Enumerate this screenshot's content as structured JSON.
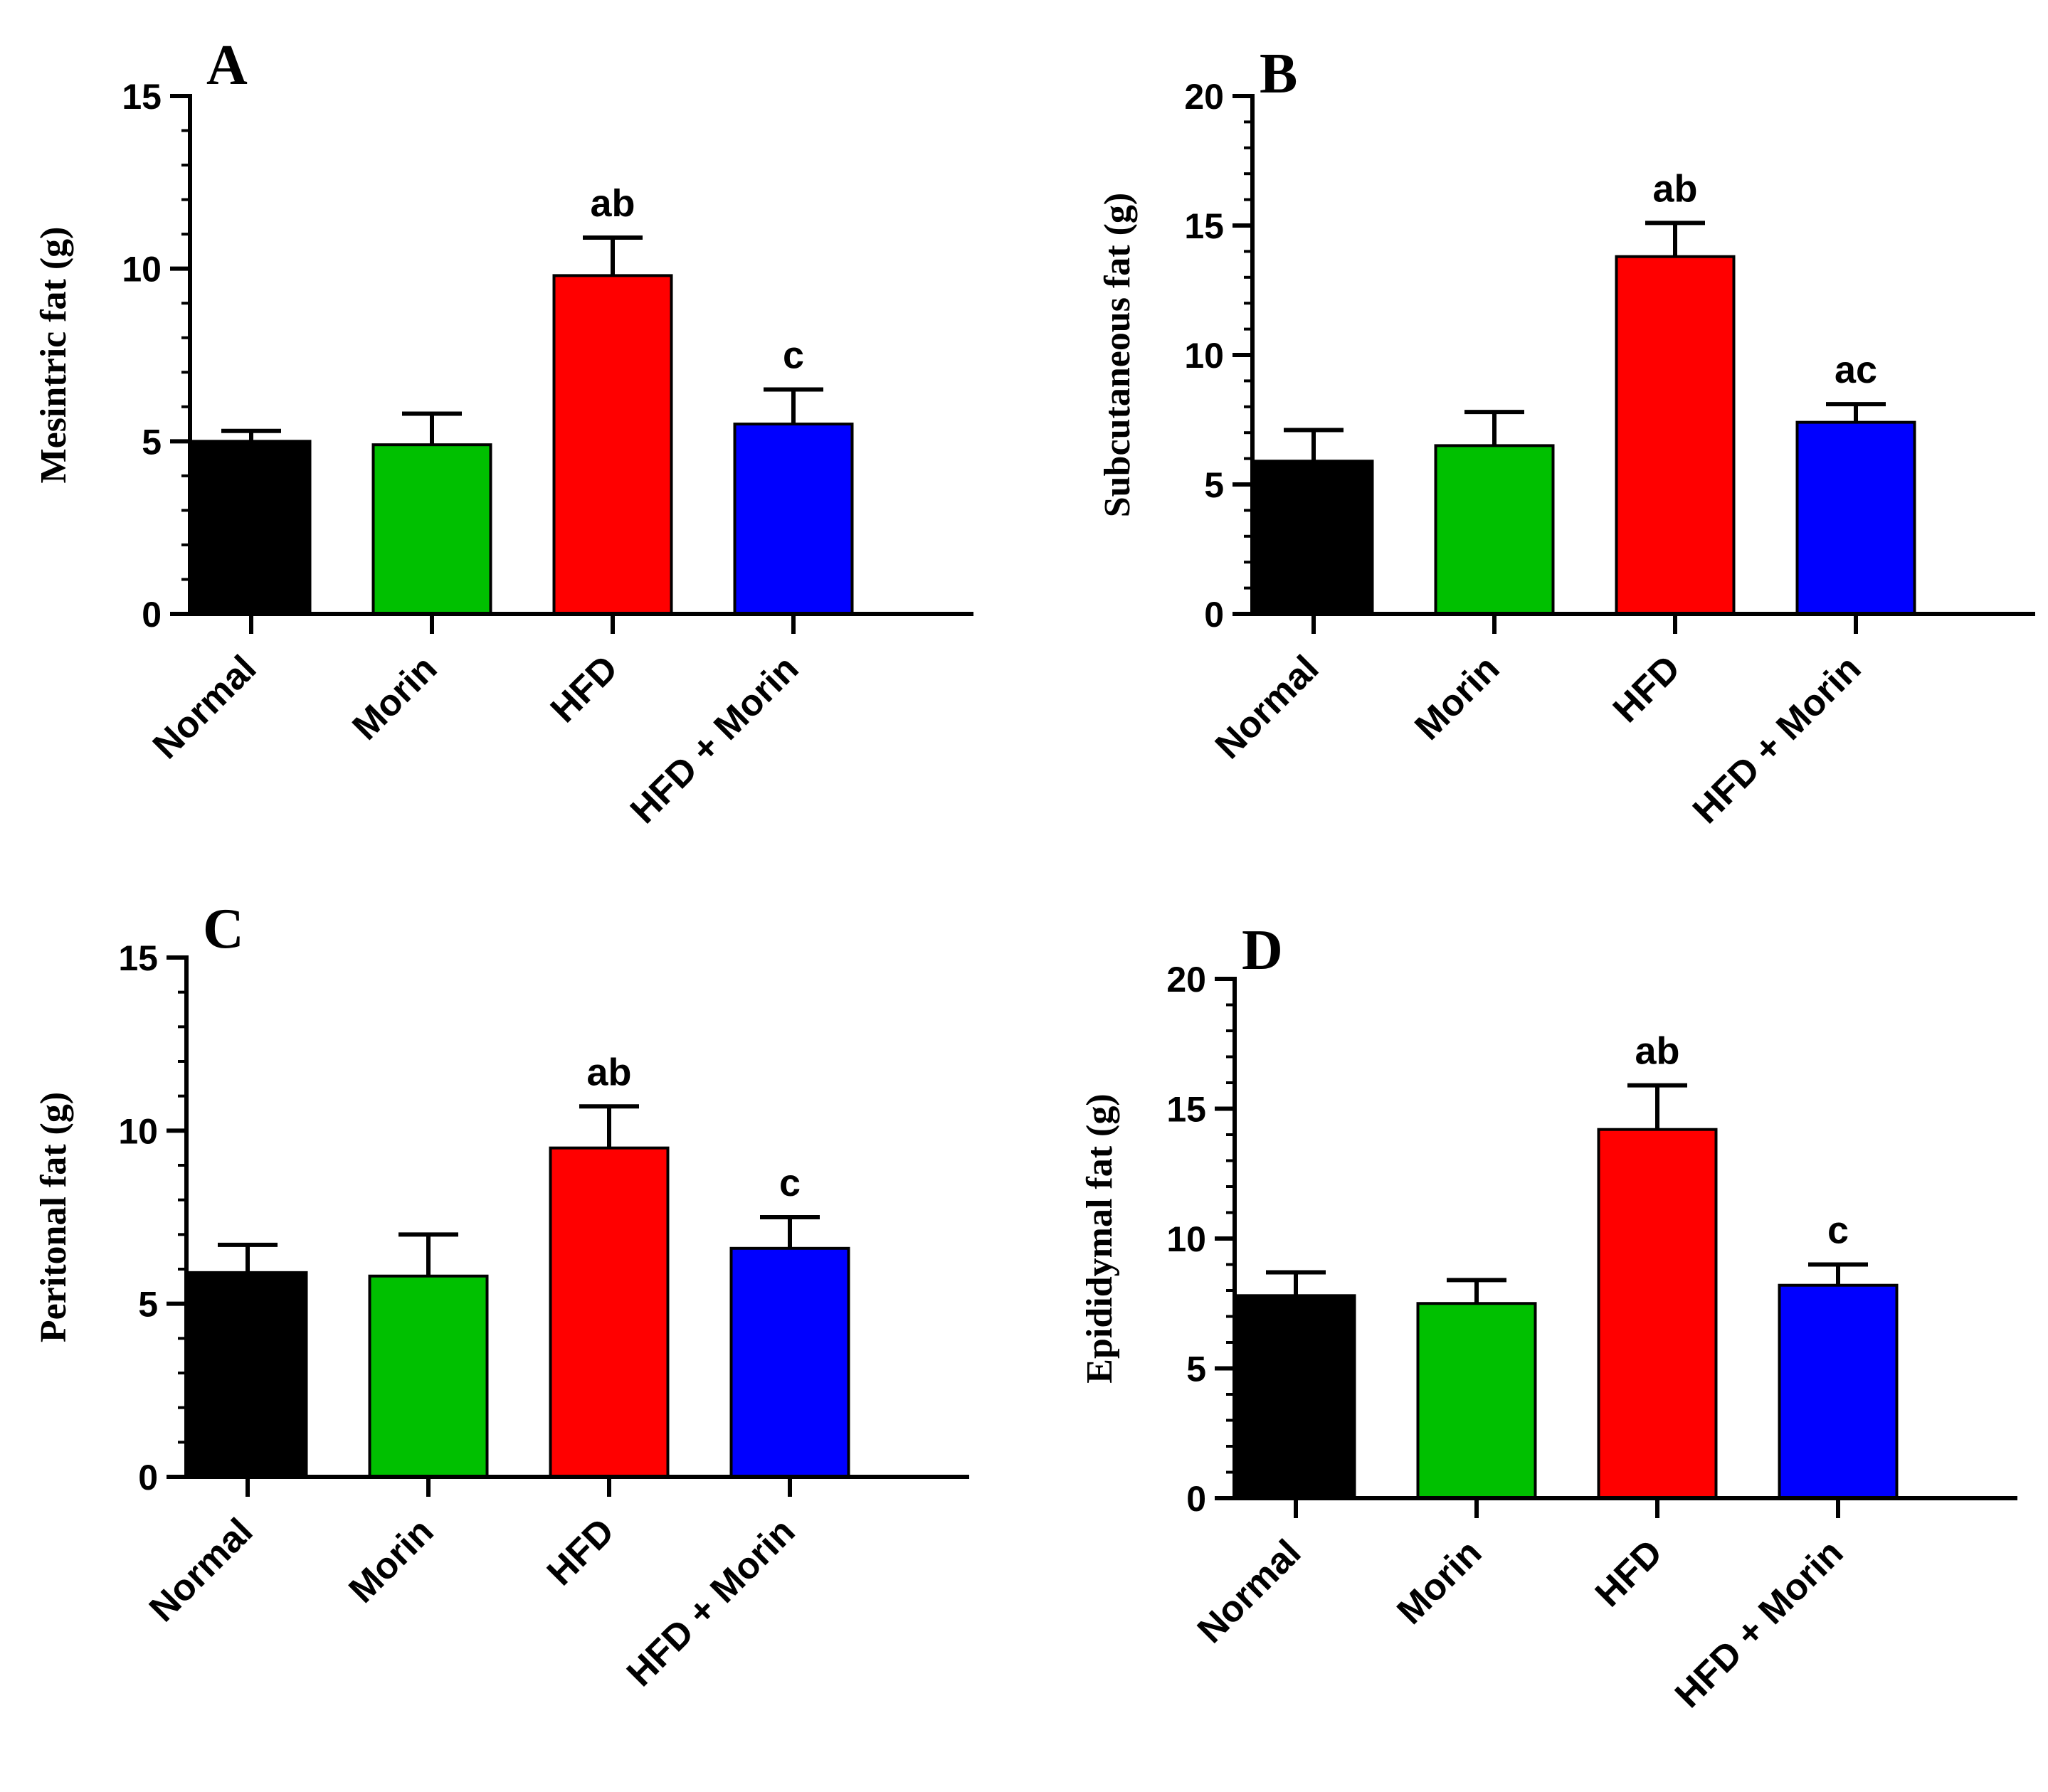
{
  "chart_data": [
    {
      "panel": "A",
      "type": "bar",
      "ylabel": "Mesintric fat (g)",
      "ylim": [
        0,
        15
      ],
      "yticks": [
        0,
        5,
        10,
        15
      ],
      "categories": [
        "Normal",
        "Morin",
        "HFD",
        "HFD + Morin"
      ],
      "values": [
        5.0,
        4.9,
        9.8,
        5.5
      ],
      "errors": [
        0.3,
        0.9,
        1.1,
        1.0
      ],
      "annotations": [
        "",
        "",
        "ab",
        "c"
      ],
      "colors": [
        "#000000",
        "#00c000",
        "#ff0000",
        "#0000ff"
      ]
    },
    {
      "panel": "B",
      "type": "bar",
      "ylabel": "Subcutaneous fat (g)",
      "ylim": [
        0,
        20
      ],
      "yticks": [
        0,
        5,
        10,
        15,
        20
      ],
      "categories": [
        "Normal",
        "Morin",
        "HFD",
        "HFD + Morin"
      ],
      "values": [
        5.9,
        6.5,
        13.8,
        7.4
      ],
      "errors": [
        1.2,
        1.3,
        1.3,
        0.7
      ],
      "annotations": [
        "",
        "",
        "ab",
        "ac"
      ],
      "colors": [
        "#000000",
        "#00c000",
        "#ff0000",
        "#0000ff"
      ]
    },
    {
      "panel": "C",
      "type": "bar",
      "ylabel": "Peritonal fat (g)",
      "ylim": [
        0,
        15
      ],
      "yticks": [
        0,
        5,
        10,
        15
      ],
      "categories": [
        "Normal",
        "Morin",
        "HFD",
        "HFD + Morin"
      ],
      "values": [
        5.9,
        5.8,
        9.5,
        6.6
      ],
      "errors": [
        0.8,
        1.2,
        1.2,
        0.9
      ],
      "annotations": [
        "",
        "",
        "ab",
        "c"
      ],
      "colors": [
        "#000000",
        "#00c000",
        "#ff0000",
        "#0000ff"
      ]
    },
    {
      "panel": "D",
      "type": "bar",
      "ylabel": "Epididymal fat (g)",
      "ylim": [
        0,
        20
      ],
      "yticks": [
        0,
        5,
        10,
        15,
        20
      ],
      "categories": [
        "Normal",
        "Morin",
        "HFD",
        "HFD + Morin"
      ],
      "values": [
        7.8,
        7.5,
        14.2,
        8.2
      ],
      "errors": [
        0.9,
        0.9,
        1.7,
        0.8
      ],
      "annotations": [
        "",
        "",
        "ab",
        "c"
      ],
      "colors": [
        "#000000",
        "#00c000",
        "#ff0000",
        "#0000ff"
      ]
    }
  ]
}
